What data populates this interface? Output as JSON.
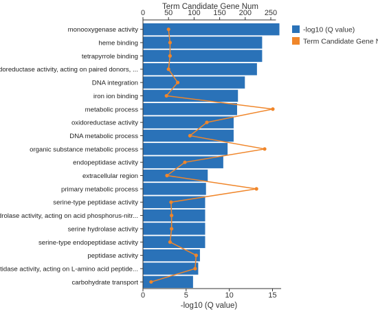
{
  "chart_data": {
    "type": "bar",
    "categories": [
      "monooxygenase activity",
      "heme binding",
      "tetrapyrrole binding",
      "oxidoreductase activity, acting on paired donors, ...",
      "DNA integration",
      "iron ion binding",
      "metabolic process",
      "oxidoreductase activity",
      "DNA metabolic process",
      "organic substance metabolic process",
      "endopeptidase activity",
      "extracellular region",
      "primary metabolic process",
      "serine-type peptidase activity",
      "hydrolase activity, acting on acid phosphorus-nitr...",
      "serine hydrolase activity",
      "serine-type endopeptidase activity",
      "peptidase activity",
      "peptidase activity, acting on L-amino acid peptide...",
      "carbohydrate transport"
    ],
    "series": [
      {
        "name": "-log10 (Q value)",
        "type": "bar",
        "axis": "bottom",
        "color": "#2a72b8",
        "values": [
          15.8,
          13.8,
          13.8,
          13.2,
          11.8,
          11.0,
          10.9,
          10.5,
          10.5,
          9.8,
          9.3,
          7.5,
          7.3,
          7.2,
          7.2,
          7.2,
          7.2,
          6.6,
          6.4,
          5.8
        ]
      },
      {
        "name": "Term Candidate Gene Num",
        "type": "line",
        "axis": "top",
        "color": "#f0862a",
        "values": [
          50,
          53,
          53,
          50,
          68,
          46,
          254,
          125,
          92,
          238,
          82,
          47,
          222,
          55,
          56,
          56,
          53,
          104,
          102,
          16
        ]
      }
    ],
    "xlabel_bottom": "-log10 (Q value)",
    "xlabel_top": "Term Candidate Gene Num",
    "xlim_bottom": [
      0,
      16
    ],
    "xticks_bottom": [
      "0",
      "5",
      "10",
      "15"
    ],
    "xlim_top": [
      0,
      260
    ],
    "xticks_top": [
      "0",
      "50",
      "100",
      "150",
      "200",
      "250"
    ],
    "legend": {
      "position": "top-right",
      "items": [
        "-log10 (Q value)",
        "Term Candidate Gene Num"
      ]
    },
    "grid": false
  }
}
